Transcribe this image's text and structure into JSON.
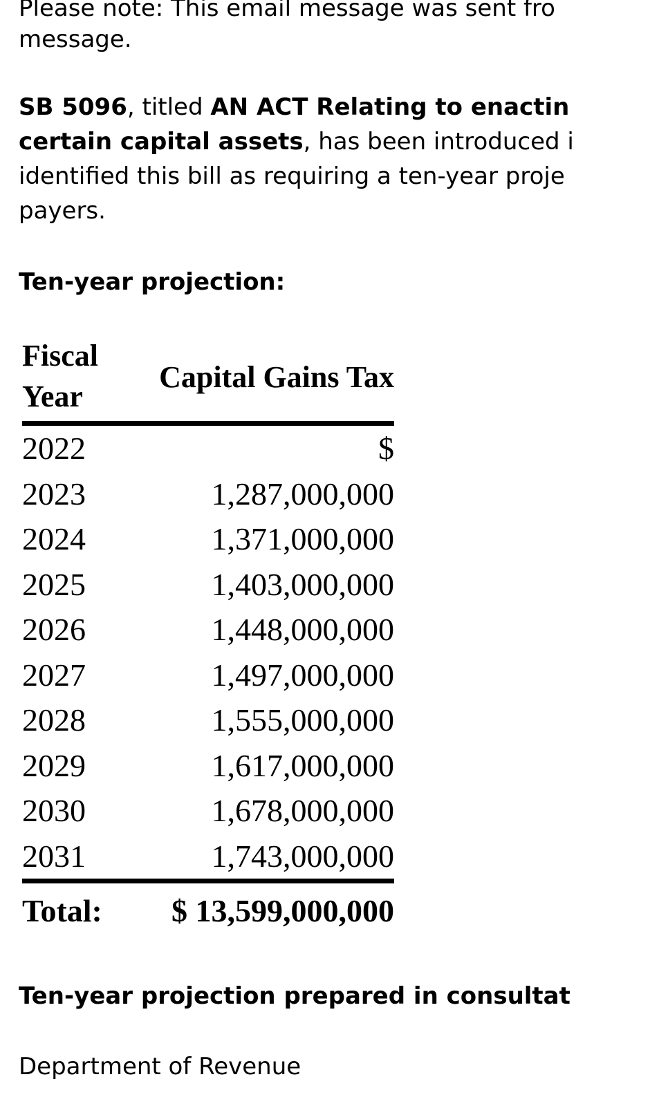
{
  "notice": {
    "lines": [
      "Please note: This email message was sent fro",
      "message."
    ]
  },
  "intro": {
    "lines": [
      [
        {
          "text": "SB 5096",
          "bold": true
        },
        {
          "text": ", titled ",
          "bold": false
        },
        {
          "text": "AN ACT Relating to enactin",
          "bold": true
        }
      ],
      [
        {
          "text": "certain capital assets",
          "bold": true
        },
        {
          "text": ", has been introduced i",
          "bold": false
        }
      ],
      [
        {
          "text": "identified this bill as requiring a ten-year proje",
          "bold": false
        }
      ],
      [
        {
          "text": "payers.",
          "bold": false
        }
      ]
    ]
  },
  "projection_heading": "Ten-year projection:",
  "table": {
    "header": [
      "Fiscal Year",
      "Capital Gains Tax"
    ],
    "rows": [
      [
        "2022",
        "$"
      ],
      [
        "2023",
        "1,287,000,000"
      ],
      [
        "2024",
        "1,371,000,000"
      ],
      [
        "2025",
        "1,403,000,000"
      ],
      [
        "2026",
        "1,448,000,000"
      ],
      [
        "2027",
        "1,497,000,000"
      ],
      [
        "2028",
        "1,555,000,000"
      ],
      [
        "2029",
        "1,617,000,000"
      ],
      [
        "2030",
        "1,678,000,000"
      ],
      [
        "2031",
        "1,743,000,000"
      ]
    ],
    "total": [
      "Total:",
      "$ 13,599,000,000"
    ]
  },
  "consultation_heading": "Ten-year projection prepared in consultat",
  "signature": "Department of Revenue"
}
